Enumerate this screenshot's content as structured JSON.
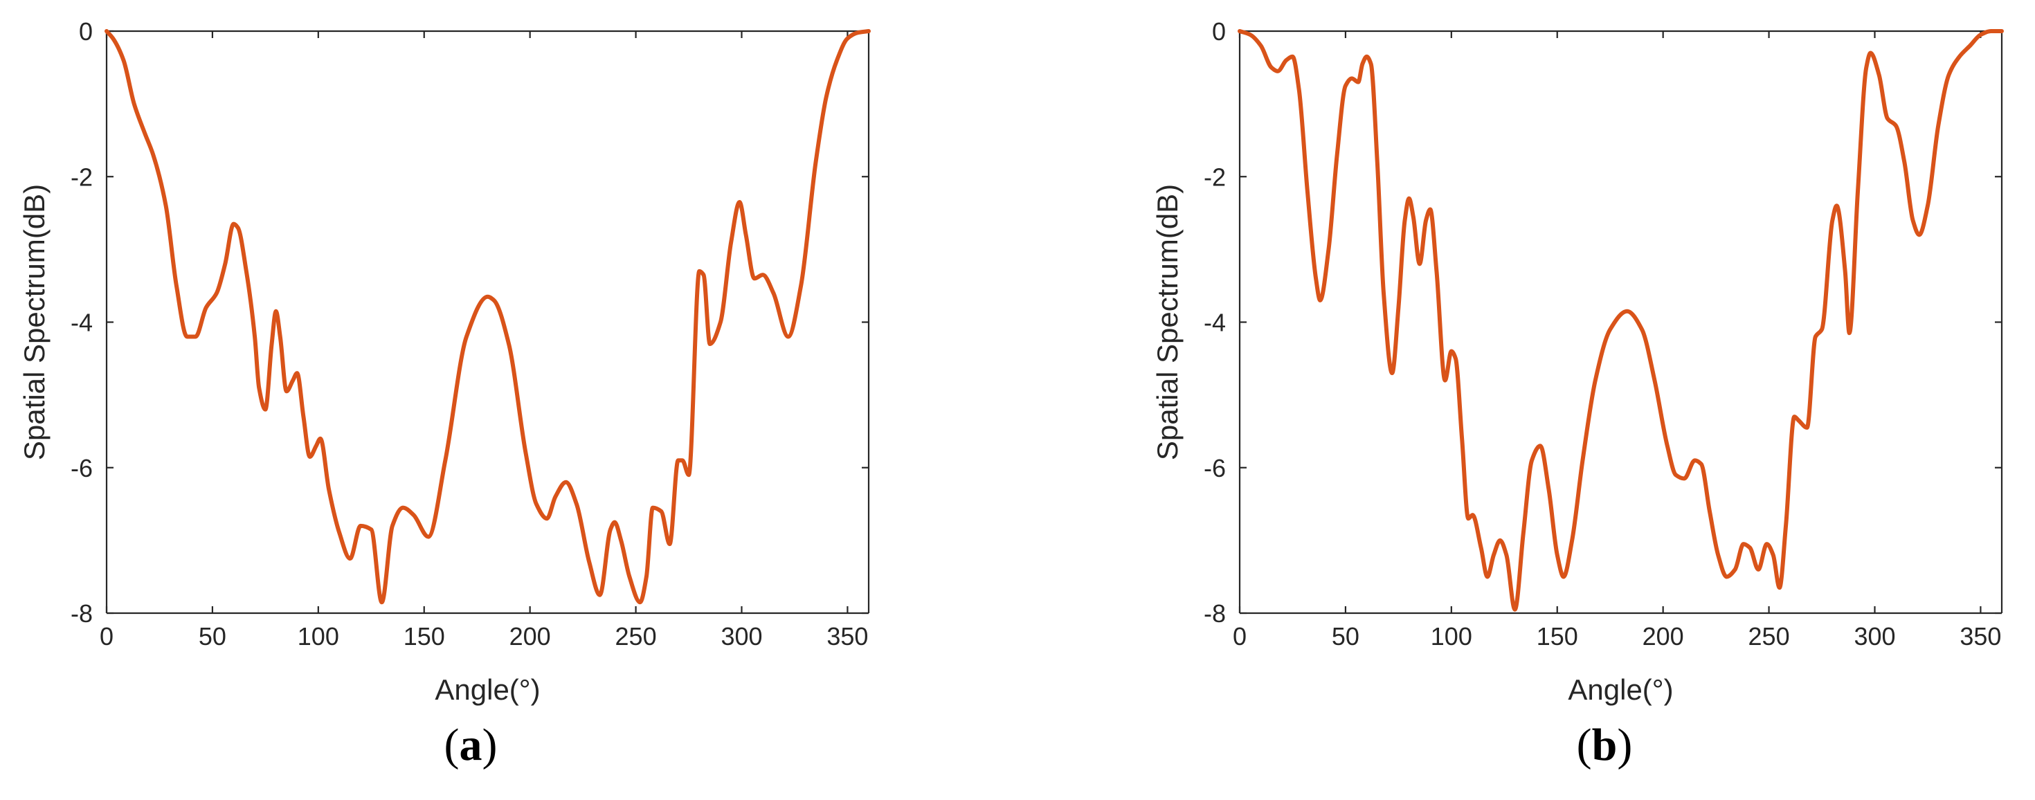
{
  "chart_data": [
    {
      "type": "line",
      "caption": "a",
      "xlabel": "Angle(°)",
      "ylabel": "Spatial Spectrum(dB)",
      "xlim": [
        0,
        360
      ],
      "ylim": [
        -8,
        0
      ],
      "xticks": [
        "0",
        "50",
        "100",
        "150",
        "200",
        "250",
        "300",
        "350"
      ],
      "yticks": [
        "0",
        "-2",
        "-4",
        "-6",
        "-8"
      ],
      "grid": false,
      "series": [
        {
          "color": "#d95319",
          "x": [
            0,
            3,
            8,
            13,
            18,
            22,
            28,
            33,
            38,
            42,
            47,
            52,
            56,
            60,
            62,
            66,
            70,
            72,
            75,
            78,
            80,
            82,
            85,
            88,
            90,
            93,
            96,
            99,
            101,
            105,
            110,
            115,
            120,
            125,
            130,
            135,
            140,
            145,
            152,
            160,
            170,
            180,
            183,
            190,
            198,
            203,
            208,
            212,
            217,
            222,
            228,
            233,
            238,
            240,
            243,
            247,
            252,
            255,
            258,
            262,
            266,
            270,
            272,
            275,
            280,
            282,
            285,
            290,
            295,
            299,
            302,
            306,
            310,
            315,
            322,
            328,
            335,
            340,
            345,
            350,
            355,
            360
          ],
          "values": [
            0,
            -0.1,
            -0.4,
            -1.0,
            -1.4,
            -1.7,
            -2.4,
            -3.5,
            -4.2,
            -4.2,
            -3.8,
            -3.6,
            -3.2,
            -2.65,
            -2.7,
            -3.3,
            -4.2,
            -4.9,
            -5.2,
            -4.3,
            -3.85,
            -4.2,
            -4.95,
            -4.8,
            -4.7,
            -5.3,
            -5.85,
            -5.7,
            -5.6,
            -6.3,
            -6.9,
            -7.25,
            -6.8,
            -6.85,
            -7.85,
            -6.8,
            -6.55,
            -6.65,
            -6.95,
            -5.9,
            -4.2,
            -3.65,
            -3.7,
            -4.3,
            -5.8,
            -6.5,
            -6.7,
            -6.4,
            -6.2,
            -6.5,
            -7.3,
            -7.75,
            -6.85,
            -6.75,
            -7.0,
            -7.5,
            -7.85,
            -7.5,
            -6.55,
            -6.6,
            -7.05,
            -5.9,
            -5.9,
            -6.1,
            -3.3,
            -3.35,
            -4.3,
            -4.0,
            -2.9,
            -2.35,
            -2.8,
            -3.4,
            -3.35,
            -3.6,
            -4.2,
            -3.5,
            -1.8,
            -0.9,
            -0.4,
            -0.1,
            -0.02,
            0
          ]
        }
      ]
    },
    {
      "type": "line",
      "caption": "b",
      "xlabel": "Angle(°)",
      "ylabel": "Spatial Spectrum(dB)",
      "xlim": [
        0,
        360
      ],
      "ylim": [
        -8,
        0
      ],
      "xticks": [
        "0",
        "50",
        "100",
        "150",
        "200",
        "250",
        "300",
        "350"
      ],
      "yticks": [
        "0",
        "-2",
        "-4",
        "-6",
        "-8"
      ],
      "grid": false,
      "series": [
        {
          "color": "#d95319",
          "x": [
            0,
            5,
            10,
            15,
            18,
            22,
            25,
            28,
            32,
            36,
            38,
            42,
            46,
            50,
            53,
            56,
            58,
            60,
            62,
            65,
            68,
            72,
            75,
            78,
            80,
            82,
            85,
            88,
            90,
            93,
            97,
            100,
            102,
            105,
            108,
            110,
            114,
            117,
            120,
            123,
            126,
            130,
            134,
            138,
            142,
            146,
            150,
            153,
            157,
            162,
            168,
            175,
            183,
            190,
            196,
            202,
            206,
            210,
            215,
            218,
            222,
            226,
            230,
            234,
            238,
            241,
            245,
            249,
            252,
            255,
            258,
            262,
            264,
            268,
            272,
            275,
            280,
            282,
            286,
            288,
            292,
            296,
            298,
            302,
            306,
            310,
            314,
            318,
            321,
            325,
            330,
            335,
            340,
            345,
            350,
            355,
            360
          ],
          "values": [
            0,
            -0.05,
            -0.2,
            -0.5,
            -0.55,
            -0.4,
            -0.35,
            -0.8,
            -2.2,
            -3.4,
            -3.7,
            -3.0,
            -1.7,
            -0.75,
            -0.65,
            -0.7,
            -0.45,
            -0.35,
            -0.45,
            -1.8,
            -3.6,
            -4.7,
            -3.8,
            -2.6,
            -2.3,
            -2.55,
            -3.2,
            -2.6,
            -2.45,
            -3.3,
            -4.8,
            -4.4,
            -4.5,
            -5.6,
            -6.7,
            -6.65,
            -7.1,
            -7.5,
            -7.2,
            -7.0,
            -7.2,
            -7.95,
            -6.9,
            -5.9,
            -5.7,
            -6.3,
            -7.2,
            -7.5,
            -7.0,
            -5.9,
            -4.8,
            -4.1,
            -3.85,
            -4.1,
            -4.8,
            -5.7,
            -6.1,
            -6.15,
            -5.9,
            -5.95,
            -6.6,
            -7.2,
            -7.5,
            -7.4,
            -7.05,
            -7.1,
            -7.4,
            -7.05,
            -7.2,
            -7.65,
            -6.8,
            -5.3,
            -5.35,
            -5.45,
            -4.2,
            -4.1,
            -2.6,
            -2.4,
            -3.3,
            -4.15,
            -2.2,
            -0.5,
            -0.3,
            -0.6,
            -1.2,
            -1.3,
            -1.8,
            -2.6,
            -2.8,
            -2.4,
            -1.3,
            -0.6,
            -0.35,
            -0.2,
            -0.05,
            0,
            0
          ]
        }
      ]
    }
  ]
}
